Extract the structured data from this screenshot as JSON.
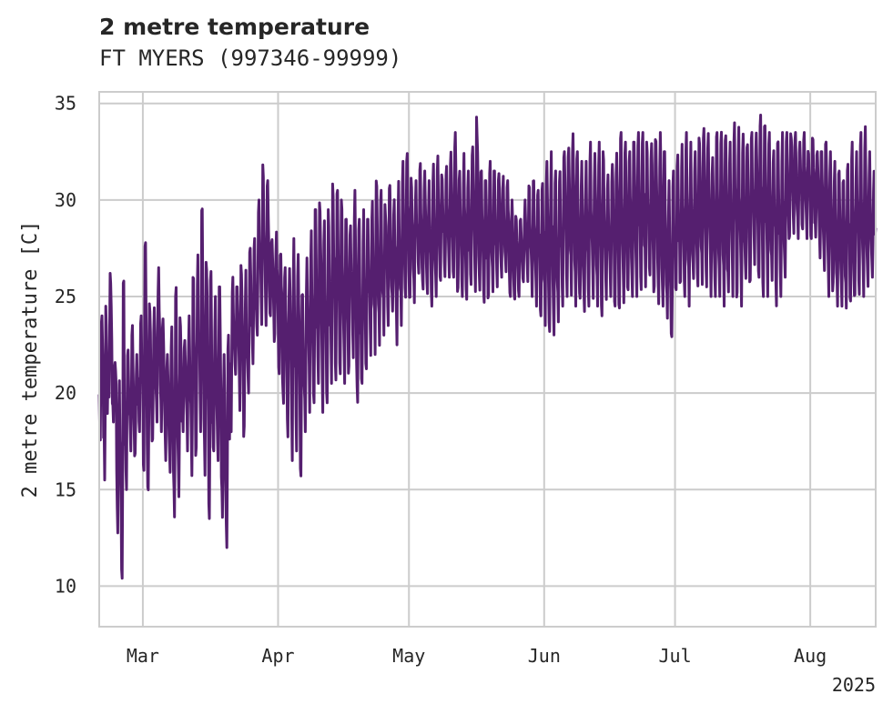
{
  "chart_data": {
    "type": "line",
    "title": "2 metre temperature",
    "subtitle": "FT MYERS (997346-99999)",
    "ylabel": "2 metre temperature [C]",
    "xlabel": "",
    "x_tick_labels": [
      "Mar",
      "Apr",
      "May",
      "Jun",
      "Jul",
      "Aug"
    ],
    "x_year_label": "2025",
    "y_ticks": [
      10,
      15,
      20,
      25,
      30,
      35
    ],
    "xlim": [
      "2025-02-19",
      "2025-08-16"
    ],
    "ylim": [
      7.9,
      35.6
    ],
    "grid": true,
    "line_color": "#551f6f",
    "series": [
      {
        "resolution": "3-hourly",
        "x": [
          "2025-02-19",
          "2025-02-20",
          "2025-02-21",
          "2025-02-22",
          "2025-02-23",
          "2025-02-24",
          "2025-02-25",
          "2025-02-26",
          "2025-02-27",
          "2025-02-28",
          "2025-03-01",
          "2025-03-02",
          "2025-03-03",
          "2025-03-04",
          "2025-03-05",
          "2025-03-06",
          "2025-03-07",
          "2025-03-08",
          "2025-03-09",
          "2025-03-10",
          "2025-03-11",
          "2025-03-12",
          "2025-03-13",
          "2025-03-14",
          "2025-03-15",
          "2025-03-16",
          "2025-03-17",
          "2025-03-18",
          "2025-03-19",
          "2025-03-20",
          "2025-03-21",
          "2025-03-22",
          "2025-03-23",
          "2025-03-24",
          "2025-03-25",
          "2025-03-26",
          "2025-03-27",
          "2025-03-28",
          "2025-03-29",
          "2025-03-30",
          "2025-03-31",
          "2025-04-01",
          "2025-04-02",
          "2025-04-03",
          "2025-04-04",
          "2025-04-05",
          "2025-04-06",
          "2025-04-07",
          "2025-04-08",
          "2025-04-09",
          "2025-04-10",
          "2025-04-11",
          "2025-04-12",
          "2025-04-13",
          "2025-04-14",
          "2025-04-15",
          "2025-04-16",
          "2025-04-17",
          "2025-04-18",
          "2025-04-19",
          "2025-04-20",
          "2025-04-21",
          "2025-04-22",
          "2025-04-23",
          "2025-04-24",
          "2025-04-25",
          "2025-04-26",
          "2025-04-27",
          "2025-04-28",
          "2025-04-29",
          "2025-04-30",
          "2025-05-01",
          "2025-05-02",
          "2025-05-03",
          "2025-05-04",
          "2025-05-05",
          "2025-05-06",
          "2025-05-07",
          "2025-05-08",
          "2025-05-09",
          "2025-05-10",
          "2025-05-11",
          "2025-05-12",
          "2025-05-13",
          "2025-05-14",
          "2025-05-15",
          "2025-05-16",
          "2025-05-17",
          "2025-05-18",
          "2025-05-19",
          "2025-05-20",
          "2025-05-21",
          "2025-05-22",
          "2025-05-23",
          "2025-05-24",
          "2025-05-25",
          "2025-05-26",
          "2025-05-27",
          "2025-05-28",
          "2025-05-29",
          "2025-05-30",
          "2025-05-31",
          "2025-06-01",
          "2025-06-02",
          "2025-06-03",
          "2025-06-04",
          "2025-06-05",
          "2025-06-06",
          "2025-06-07",
          "2025-06-08",
          "2025-06-09",
          "2025-06-10",
          "2025-06-11",
          "2025-06-12",
          "2025-06-13",
          "2025-06-14",
          "2025-06-15",
          "2025-06-16",
          "2025-06-17",
          "2025-06-18",
          "2025-06-19",
          "2025-06-20",
          "2025-06-21",
          "2025-06-22",
          "2025-06-23",
          "2025-06-24",
          "2025-06-25",
          "2025-06-26",
          "2025-06-27",
          "2025-06-28",
          "2025-06-29",
          "2025-06-30",
          "2025-07-01",
          "2025-07-02",
          "2025-07-03",
          "2025-07-04",
          "2025-07-05",
          "2025-07-06",
          "2025-07-07",
          "2025-07-08",
          "2025-07-09",
          "2025-07-10",
          "2025-07-11",
          "2025-07-12",
          "2025-07-13",
          "2025-07-14",
          "2025-07-15",
          "2025-07-16",
          "2025-07-17",
          "2025-07-18",
          "2025-07-19",
          "2025-07-20",
          "2025-07-21",
          "2025-07-22",
          "2025-07-23",
          "2025-07-24",
          "2025-07-25",
          "2025-07-26",
          "2025-07-27",
          "2025-07-28",
          "2025-07-29",
          "2025-07-30",
          "2025-07-31",
          "2025-08-01",
          "2025-08-02",
          "2025-08-03",
          "2025-08-04",
          "2025-08-05",
          "2025-08-06",
          "2025-08-07",
          "2025-08-08",
          "2025-08-09",
          "2025-08-10",
          "2025-08-11",
          "2025-08-12",
          "2025-08-13",
          "2025-08-14",
          "2025-08-15",
          "2025-08-16"
        ],
        "daily_min": [
          17.5,
          15.5,
          19.0,
          18.5,
          12.0,
          9.2,
          15.0,
          17.0,
          16.5,
          18.0,
          16.0,
          14.0,
          17.0,
          18.5,
          18.0,
          16.5,
          15.0,
          12.5,
          13.5,
          18.0,
          17.0,
          15.5,
          16.0,
          18.0,
          15.5,
          13.5,
          17.0,
          16.5,
          13.0,
          12.0,
          18.0,
          20.5,
          19.0,
          17.5,
          20.0,
          21.5,
          23.0,
          22.5,
          23.5,
          24.0,
          22.5,
          21.0,
          18.5,
          17.0,
          16.5,
          17.0,
          15.5,
          18.0,
          19.0,
          19.5,
          20.5,
          19.0,
          19.5,
          20.5,
          20.0,
          21.0,
          20.5,
          20.5,
          21.5,
          19.5,
          20.5,
          21.0,
          21.5,
          22.0,
          22.0,
          23.0,
          23.5,
          23.5,
          22.5,
          23.5,
          24.5,
          24.5,
          24.5,
          25.5,
          25.0,
          25.0,
          24.5,
          25.0,
          25.5,
          25.5,
          25.5,
          26.0,
          25.0,
          25.0,
          24.5,
          25.5,
          25.0,
          24.5,
          24.0,
          24.5,
          25.0,
          25.5,
          26.0,
          26.0,
          25.0,
          24.5,
          25.0,
          25.5,
          25.5,
          25.0,
          24.5,
          24.0,
          23.5,
          22.5,
          22.5,
          23.5,
          24.5,
          25.0,
          25.0,
          24.5,
          24.0,
          24.0,
          24.5,
          24.5,
          24.5,
          24.0,
          24.5,
          25.0,
          24.5,
          24.0,
          24.0,
          24.5,
          25.0,
          25.0,
          25.0,
          25.5,
          25.5,
          25.0,
          24.5,
          24.5,
          23.0,
          22.5,
          24.5,
          25.0,
          25.0,
          24.5,
          25.0,
          25.5,
          25.5,
          25.5,
          25.0,
          25.0,
          25.0,
          24.5,
          24.5,
          25.0,
          24.5,
          24.5,
          25.0,
          25.5,
          26.0,
          25.5,
          25.0,
          25.0,
          25.0,
          24.5,
          25.0,
          26.0,
          27.5,
          28.0,
          28.0,
          28.5,
          28.0,
          28.0,
          27.5,
          27.0,
          25.5,
          25.0,
          25.0,
          24.5,
          24.5,
          24.0,
          24.5,
          24.5,
          25.0,
          25.0,
          25.5,
          26.0,
          25.5,
          24.5
        ],
        "daily_max": [
          24.0,
          24.5,
          26.5,
          22.0,
          21.0,
          25.8,
          22.5,
          23.5,
          22.0,
          24.0,
          28.0,
          25.5,
          24.5,
          26.5,
          24.0,
          22.0,
          24.0,
          26.2,
          24.5,
          23.0,
          24.0,
          26.0,
          28.0,
          29.7,
          27.5,
          26.5,
          25.0,
          25.5,
          22.0,
          23.0,
          26.0,
          25.5,
          27.0,
          26.5,
          27.5,
          28.0,
          30.0,
          32.2,
          31.0,
          28.0,
          28.5,
          27.5,
          26.5,
          27.0,
          28.0,
          28.5,
          26.0,
          27.0,
          28.5,
          29.5,
          30.5,
          30.0,
          29.5,
          31.0,
          30.5,
          30.0,
          29.0,
          29.5,
          30.5,
          29.0,
          29.5,
          29.0,
          31.0,
          31.0,
          30.5,
          30.0,
          31.5,
          30.5,
          31.0,
          32.0,
          32.5,
          31.5,
          31.0,
          32.0,
          31.5,
          31.0,
          32.0,
          32.5,
          31.5,
          32.5,
          32.5,
          33.5,
          32.0,
          32.5,
          31.5,
          33.0,
          34.4,
          32.5,
          31.0,
          32.0,
          31.5,
          32.0,
          31.5,
          31.0,
          30.0,
          29.5,
          29.0,
          30.0,
          31.0,
          31.0,
          31.0,
          31.5,
          32.0,
          32.5,
          31.5,
          32.0,
          32.5,
          33.0,
          33.5,
          32.5,
          32.0,
          32.0,
          33.0,
          32.5,
          33.0,
          32.5,
          32.0,
          32.5,
          33.0,
          33.5,
          33.0,
          32.5,
          33.0,
          33.5,
          33.5,
          33.0,
          33.5,
          34.0,
          33.5,
          32.5,
          31.0,
          31.5,
          32.5,
          33.0,
          33.5,
          33.0,
          32.5,
          33.5,
          34.4,
          33.5,
          33.0,
          33.5,
          34.0,
          33.5,
          33.0,
          34.0,
          34.2,
          33.5,
          33.0,
          33.5,
          34.0,
          34.4,
          34.0,
          33.5,
          33.0,
          33.5,
          33.5,
          33.5,
          34.0,
          33.5,
          33.0,
          33.5,
          33.0,
          33.5,
          33.0,
          32.5,
          33.0,
          32.5,
          32.0,
          31.5,
          31.0,
          32.0,
          33.0,
          32.5,
          33.5,
          33.8,
          32.5,
          31.5,
          32.0,
          30.5
        ]
      }
    ]
  }
}
